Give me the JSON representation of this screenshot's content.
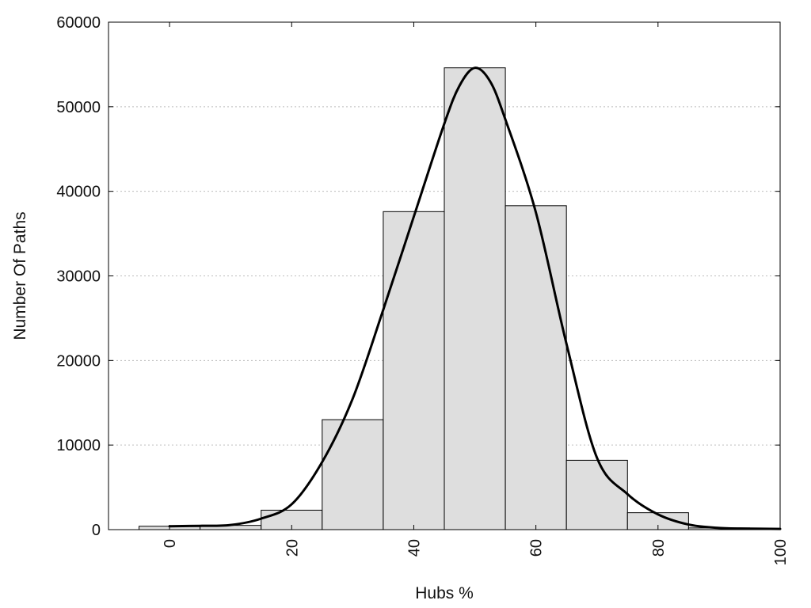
{
  "chart_data": {
    "type": "bar",
    "xlabel": "Hubs %",
    "ylabel": "Number Of Paths",
    "xlim": [
      -10,
      100
    ],
    "ylim": [
      0,
      60000
    ],
    "x_ticks": [
      "0",
      "20",
      "40",
      "60",
      "80",
      "100"
    ],
    "y_ticks": [
      "0",
      "10000",
      "20000",
      "30000",
      "40000",
      "50000",
      "60000"
    ],
    "grid": "horizontal-dotted",
    "bins": [
      {
        "start": -5,
        "end": 5,
        "value": 400
      },
      {
        "start": 5,
        "end": 15,
        "value": 500
      },
      {
        "start": 15,
        "end": 25,
        "value": 2300
      },
      {
        "start": 25,
        "end": 35,
        "value": 13000
      },
      {
        "start": 35,
        "end": 45,
        "value": 37600
      },
      {
        "start": 45,
        "end": 55,
        "value": 54600
      },
      {
        "start": 55,
        "end": 65,
        "value": 38300
      },
      {
        "start": 65,
        "end": 75,
        "value": 8200
      },
      {
        "start": 75,
        "end": 85,
        "value": 2000
      },
      {
        "start": 85,
        "end": 95,
        "value": 200
      }
    ],
    "density_curve": {
      "x": [
        0,
        5,
        10,
        15,
        20,
        25,
        30,
        35,
        40,
        45,
        47.5,
        50,
        52.5,
        55,
        60,
        65,
        70,
        75,
        80,
        85,
        90,
        95,
        100
      ],
      "y": [
        400,
        450,
        550,
        1300,
        3000,
        8000,
        15500,
        26000,
        37000,
        48000,
        52500,
        54600,
        53000,
        48500,
        37500,
        22000,
        8500,
        4200,
        1800,
        600,
        200,
        120,
        80
      ]
    },
    "colors": {
      "bar_fill": "#dedede",
      "bar_stroke": "#000000",
      "curve": "#000000"
    }
  }
}
